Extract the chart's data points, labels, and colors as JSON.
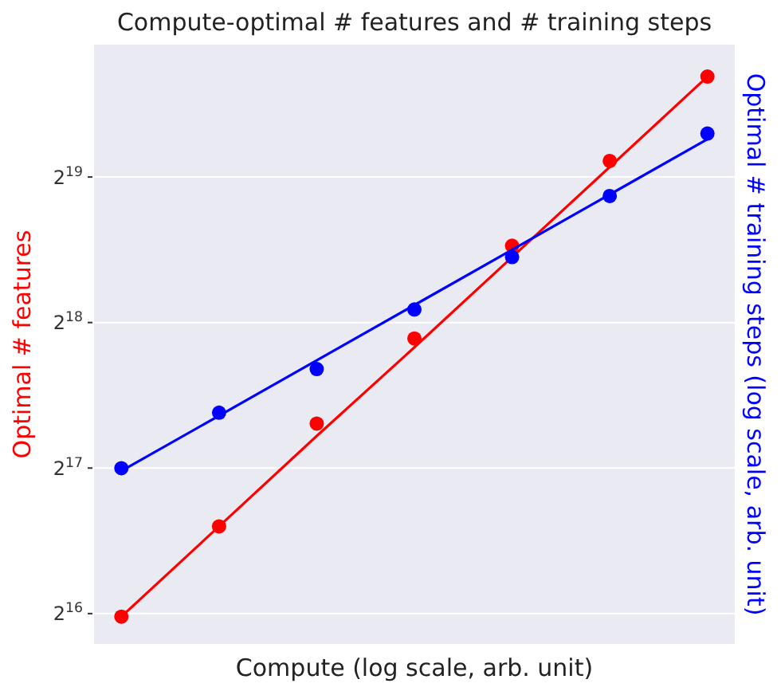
{
  "chart_data": {
    "type": "scatter",
    "title": "Compute-optimal # features and # training steps",
    "xlabel": "Compute (log scale, arb. unit)",
    "ylabel": "Optimal # features",
    "y2label": "Optimal # training steps (log scale, arb. unit)",
    "categories": [
      null,
      null,
      null,
      null,
      null,
      null,
      null
    ],
    "series": [
      {
        "color": "#ff0000",
        "values": [
          64600,
          99300,
          162000,
          243000,
          378000,
          566000,
          846000
        ]
      },
      {
        "type": "line",
        "color": "#ff0000",
        "marker": "none",
        "values": [
          64600,
          99300,
          152700,
          233000,
          358000,
          550000,
          846000
        ]
      },
      {
        "color": "#0000ff",
        "values": [
          131000,
          170600,
          210000,
          279000,
          358000,
          479000,
          645000
        ]
      },
      {
        "type": "line",
        "color": "#0000ff",
        "marker": "none",
        "values": [
          129300,
          168200,
          218900,
          284900,
          370700,
          482500,
          627800
        ]
      }
    ],
    "log": "y",
    "ylim": [
      56700,
      985000
    ],
    "yticks": [
      {
        "value": 65536,
        "label": "2$^{16}$"
      },
      {
        "value": 131072,
        "label": "2$^{17}$"
      },
      {
        "value": 262144,
        "label": "2$^{18}$"
      },
      {
        "value": 524288,
        "label": "2$^{19}$"
      }
    ],
    "grid": "y",
    "marker": "circle",
    "tick_labels": "y"
  }
}
